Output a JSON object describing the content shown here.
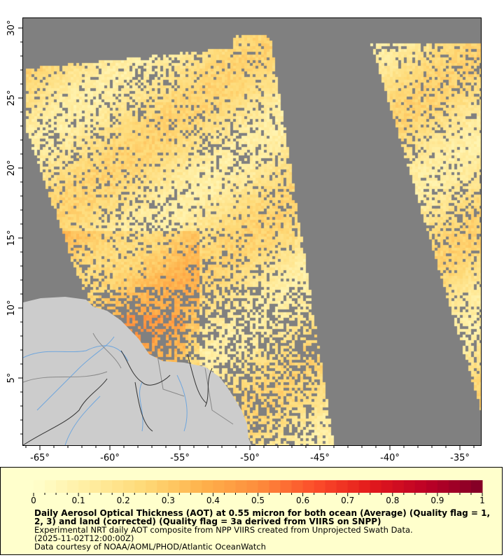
{
  "map": {
    "lon_ticks": [
      "-65°",
      "-60°",
      "-55°",
      "-50°",
      "-45°",
      "-40°",
      "-35°"
    ],
    "lat_ticks": [
      "5°",
      "10°",
      "15°",
      "20°",
      "25°",
      "30°"
    ],
    "lon_range": [
      -66.25,
      -33.45
    ],
    "lat_range": [
      0.15,
      30.75
    ],
    "colors": {
      "no_data": "#808080",
      "land": "#cccccc",
      "rivers": "#6fa6dd",
      "borders": "#333333"
    }
  },
  "colorbar": {
    "range": [
      0,
      1
    ],
    "tick_labels": [
      "0",
      "0.1",
      "0.2",
      "0.3",
      "0.4",
      "0.5",
      "0.6",
      "0.7",
      "0.8",
      "0.9",
      "1"
    ],
    "colors": [
      "#ffffcc",
      "#ffeda0",
      "#fed976",
      "#feb24c",
      "#fd8d3c",
      "#fc4e2a",
      "#e31a1c",
      "#bd0026",
      "#800026"
    ]
  },
  "legend": {
    "title_line1": "Daily Aerosol Optical Thickness (AOT) at 0.55 micron for both ocean (Average) (Quality flag = 1,",
    "title_line2": "2, 3) and land (corrected) (Quality flag = 3a derived from VIIRS on SNPP)",
    "subtitle": "Experimental NRT daily AOT composite from NPP VIIRS created from Unprojected Swath Data.",
    "time": "(2025-11-02T12:00:00Z)",
    "credit": "Data courtesy of NOAA/AOML/PHOD/Atlantic OceanWatch"
  }
}
